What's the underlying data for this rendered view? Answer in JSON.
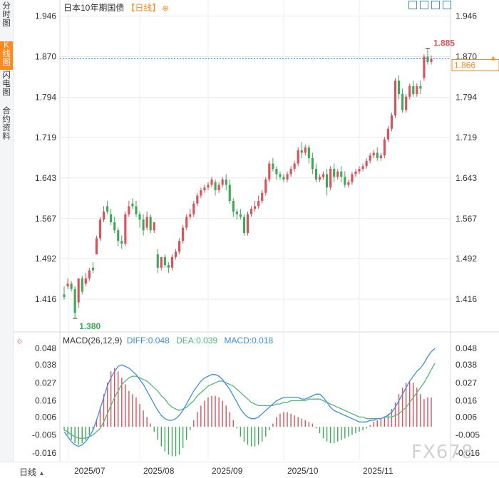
{
  "sidebar": {
    "items": [
      {
        "label": "分时图",
        "active": false
      },
      {
        "label": "K线图",
        "active": true
      },
      {
        "label": "闪电图",
        "active": false
      },
      {
        "label": "合约资料",
        "active": false
      }
    ]
  },
  "header": {
    "title": "日本10年期国债",
    "period_tag": "【日线】",
    "tag_icon": "plus-circle-icon",
    "tools": [
      "fit-icon",
      "expand-icon",
      "chart-mode-icon",
      "close-icon"
    ]
  },
  "macd_legend": {
    "name": "MACD(26,12,9)",
    "diff": "DIFF:0.048",
    "dea": "DEA:0.039",
    "macd": "MACD:0.018"
  },
  "bottom": {
    "period_button": "日线",
    "period_arrow": "▲"
  },
  "watermark": "FX678",
  "colors": {
    "up": "#e0505a",
    "down": "#3eaa58",
    "diff": "#3b8ee8",
    "dea": "#52b878",
    "accent": "#ff8a1f",
    "grid": "#e8e8e8",
    "last_price_line": "#2196f3"
  },
  "chart_data": [
    {
      "type": "candlestick",
      "title": "日本10年期国债",
      "y_ticks": [
        "1.946",
        "1.870",
        "1.794",
        "1.719",
        "1.643",
        "1.567",
        "1.492",
        "1.416"
      ],
      "ylim": [
        1.36,
        1.96
      ],
      "x_ticks": [
        "2025/07",
        "2025/08",
        "2025/09",
        "2025/10",
        "2025/11"
      ],
      "annotations": {
        "high": "1.885",
        "low": "1.380"
      },
      "last_price": "1.866",
      "right_axis_current": "1.870",
      "candles": [
        [
          1.425,
          1.44,
          1.42,
          1.415
        ],
        [
          1.44,
          1.455,
          1.445,
          1.435
        ],
        [
          1.445,
          1.45,
          1.435,
          1.43
        ],
        [
          1.435,
          1.44,
          1.39,
          1.38
        ],
        [
          1.41,
          1.43,
          1.455,
          1.4
        ],
        [
          1.455,
          1.46,
          1.43,
          1.425
        ],
        [
          1.445,
          1.465,
          1.455,
          1.44
        ],
        [
          1.455,
          1.475,
          1.47,
          1.45
        ],
        [
          1.475,
          1.485,
          1.47,
          1.465
        ],
        [
          1.5,
          1.535,
          1.53,
          1.5
        ],
        [
          1.53,
          1.57,
          1.565,
          1.525
        ],
        [
          1.565,
          1.59,
          1.58,
          1.56
        ],
        [
          1.59,
          1.6,
          1.58,
          1.575
        ],
        [
          1.575,
          1.585,
          1.56,
          1.555
        ],
        [
          1.56,
          1.57,
          1.545,
          1.54
        ],
        [
          1.545,
          1.55,
          1.525,
          1.515
        ],
        [
          1.525,
          1.535,
          1.52,
          1.51
        ],
        [
          1.52,
          1.58,
          1.575,
          1.515
        ],
        [
          1.575,
          1.6,
          1.59,
          1.57
        ],
        [
          1.595,
          1.605,
          1.59,
          1.585
        ],
        [
          1.59,
          1.6,
          1.575,
          1.57
        ],
        [
          1.575,
          1.58,
          1.565,
          1.55
        ],
        [
          1.565,
          1.575,
          1.545,
          1.535
        ],
        [
          1.55,
          1.58,
          1.57,
          1.545
        ],
        [
          1.57,
          1.575,
          1.545,
          1.54
        ],
        [
          1.545,
          1.55,
          1.56,
          1.54
        ],
        [
          1.5,
          1.51,
          1.475,
          1.465
        ],
        [
          1.475,
          1.48,
          1.495,
          1.47
        ],
        [
          1.495,
          1.5,
          1.48,
          1.475
        ],
        [
          1.48,
          1.485,
          1.475,
          1.465
        ],
        [
          1.475,
          1.5,
          1.495,
          1.47
        ],
        [
          1.495,
          1.51,
          1.505,
          1.49
        ],
        [
          1.505,
          1.53,
          1.525,
          1.5
        ],
        [
          1.525,
          1.555,
          1.55,
          1.52
        ],
        [
          1.55,
          1.575,
          1.57,
          1.545
        ],
        [
          1.57,
          1.585,
          1.575,
          1.565
        ],
        [
          1.575,
          1.6,
          1.595,
          1.57
        ],
        [
          1.595,
          1.615,
          1.61,
          1.59
        ],
        [
          1.61,
          1.625,
          1.62,
          1.605
        ],
        [
          1.62,
          1.63,
          1.625,
          1.615
        ],
        [
          1.625,
          1.635,
          1.63,
          1.62
        ],
        [
          1.63,
          1.645,
          1.64,
          1.625
        ],
        [
          1.635,
          1.64,
          1.62,
          1.61
        ],
        [
          1.62,
          1.635,
          1.63,
          1.615
        ],
        [
          1.63,
          1.645,
          1.64,
          1.625
        ],
        [
          1.64,
          1.65,
          1.63,
          1.62
        ],
        [
          1.63,
          1.64,
          1.6,
          1.595
        ],
        [
          1.6,
          1.605,
          1.58,
          1.57
        ],
        [
          1.58,
          1.585,
          1.575,
          1.565
        ],
        [
          1.575,
          1.585,
          1.57,
          1.565
        ],
        [
          1.57,
          1.575,
          1.54,
          1.535
        ],
        [
          1.54,
          1.58,
          1.575,
          1.535
        ],
        [
          1.575,
          1.59,
          1.585,
          1.57
        ],
        [
          1.585,
          1.6,
          1.59,
          1.58
        ],
        [
          1.59,
          1.61,
          1.6,
          1.585
        ],
        [
          1.6,
          1.62,
          1.615,
          1.595
        ],
        [
          1.615,
          1.645,
          1.64,
          1.61
        ],
        [
          1.64,
          1.675,
          1.67,
          1.635
        ],
        [
          1.67,
          1.68,
          1.66,
          1.655
        ],
        [
          1.66,
          1.665,
          1.65,
          1.64
        ],
        [
          1.65,
          1.655,
          1.645,
          1.64
        ],
        [
          1.645,
          1.65,
          1.64,
          1.635
        ],
        [
          1.64,
          1.655,
          1.65,
          1.635
        ],
        [
          1.65,
          1.665,
          1.66,
          1.645
        ],
        [
          1.66,
          1.675,
          1.67,
          1.655
        ],
        [
          1.67,
          1.7,
          1.695,
          1.665
        ],
        [
          1.695,
          1.71,
          1.69,
          1.68
        ],
        [
          1.69,
          1.705,
          1.7,
          1.685
        ],
        [
          1.7,
          1.705,
          1.68,
          1.67
        ],
        [
          1.68,
          1.69,
          1.66,
          1.65
        ],
        [
          1.66,
          1.67,
          1.64,
          1.635
        ],
        [
          1.64,
          1.65,
          1.645,
          1.635
        ],
        [
          1.645,
          1.655,
          1.65,
          1.64
        ],
        [
          1.65,
          1.66,
          1.625,
          1.61
        ],
        [
          1.625,
          1.665,
          1.66,
          1.62
        ],
        [
          1.66,
          1.67,
          1.645,
          1.635
        ],
        [
          1.645,
          1.66,
          1.655,
          1.64
        ],
        [
          1.655,
          1.665,
          1.645,
          1.635
        ],
        [
          1.645,
          1.655,
          1.63,
          1.625
        ],
        [
          1.63,
          1.64,
          1.635,
          1.625
        ],
        [
          1.635,
          1.655,
          1.65,
          1.63
        ],
        [
          1.65,
          1.66,
          1.655,
          1.645
        ],
        [
          1.655,
          1.665,
          1.66,
          1.65
        ],
        [
          1.66,
          1.67,
          1.665,
          1.655
        ],
        [
          1.665,
          1.68,
          1.675,
          1.66
        ],
        [
          1.675,
          1.69,
          1.685,
          1.67
        ],
        [
          1.685,
          1.695,
          1.69,
          1.68
        ],
        [
          1.69,
          1.7,
          1.68,
          1.675
        ],
        [
          1.68,
          1.69,
          1.685,
          1.675
        ],
        [
          1.685,
          1.72,
          1.715,
          1.68
        ],
        [
          1.715,
          1.74,
          1.735,
          1.71
        ],
        [
          1.735,
          1.765,
          1.76,
          1.73
        ],
        [
          1.76,
          1.83,
          1.825,
          1.755
        ],
        [
          1.825,
          1.835,
          1.8,
          1.79
        ],
        [
          1.8,
          1.81,
          1.77,
          1.765
        ],
        [
          1.77,
          1.8,
          1.795,
          1.765
        ],
        [
          1.795,
          1.82,
          1.815,
          1.79
        ],
        [
          1.815,
          1.825,
          1.8,
          1.795
        ],
        [
          1.8,
          1.82,
          1.815,
          1.795
        ],
        [
          1.815,
          1.825,
          1.81,
          1.8
        ],
        [
          1.83,
          1.875,
          1.87,
          1.825
        ],
        [
          1.87,
          1.885,
          1.86,
          1.855
        ],
        [
          1.86,
          1.872,
          1.866,
          1.855
        ]
      ]
    },
    {
      "type": "macd",
      "params": [
        26,
        12,
        9
      ],
      "y_ticks": [
        "0.048",
        "0.038",
        "0.027",
        "0.016",
        "0.006",
        "-0.005",
        "-0.016"
      ],
      "ylim": [
        -0.02,
        0.052
      ],
      "histogram": [
        -0.002,
        -0.005,
        -0.008,
        -0.01,
        -0.011,
        -0.01,
        -0.008,
        -0.005,
        -0.002,
        0.004,
        0.012,
        0.02,
        0.027,
        0.034,
        0.036,
        0.034,
        0.03,
        0.026,
        0.022,
        0.02,
        0.018,
        0.014,
        0.01,
        0.006,
        0.002,
        -0.003,
        -0.008,
        -0.012,
        -0.015,
        -0.017,
        -0.018,
        -0.018,
        -0.017,
        -0.013,
        -0.008,
        -0.002,
        0.004,
        0.009,
        0.013,
        0.016,
        0.018,
        0.019,
        0.019,
        0.018,
        0.016,
        0.013,
        0.009,
        0.004,
        -0.001,
        -0.006,
        -0.009,
        -0.011,
        -0.012,
        -0.012,
        -0.011,
        -0.009,
        -0.006,
        -0.002,
        0.002,
        0.006,
        0.008,
        0.009,
        0.009,
        0.008,
        0.007,
        0.006,
        0.005,
        0.004,
        0.003,
        0.002,
        -0.001,
        -0.004,
        -0.007,
        -0.009,
        -0.01,
        -0.01,
        -0.009,
        -0.008,
        -0.007,
        -0.006,
        -0.005,
        -0.004,
        -0.003,
        -0.002,
        -0.001,
        0.001,
        0.003,
        0.004,
        0.005,
        0.006,
        0.008,
        0.011,
        0.015,
        0.02,
        0.024,
        0.027,
        0.028,
        0.027,
        0.024,
        0.02,
        0.017,
        0.018,
        0.018
      ],
      "diff": [
        -0.003,
        -0.006,
        -0.009,
        -0.011,
        -0.012,
        -0.011,
        -0.009,
        -0.006,
        -0.002,
        0.004,
        0.011,
        0.018,
        0.025,
        0.03,
        0.034,
        0.037,
        0.038,
        0.037,
        0.036,
        0.034,
        0.032,
        0.029,
        0.026,
        0.022,
        0.018,
        0.014,
        0.01,
        0.007,
        0.005,
        0.004,
        0.004,
        0.005,
        0.007,
        0.01,
        0.014,
        0.018,
        0.022,
        0.025,
        0.028,
        0.03,
        0.031,
        0.032,
        0.032,
        0.031,
        0.029,
        0.026,
        0.023,
        0.019,
        0.015,
        0.011,
        0.008,
        0.006,
        0.005,
        0.005,
        0.006,
        0.008,
        0.01,
        0.012,
        0.014,
        0.016,
        0.017,
        0.018,
        0.018,
        0.018,
        0.018,
        0.018,
        0.017,
        0.017,
        0.018,
        0.019,
        0.02,
        0.02,
        0.018,
        0.015,
        0.012,
        0.01,
        0.009,
        0.008,
        0.007,
        0.006,
        0.005,
        0.004,
        0.003,
        0.003,
        0.003,
        0.004,
        0.004,
        0.005,
        0.005,
        0.006,
        0.007,
        0.009,
        0.012,
        0.016,
        0.02,
        0.024,
        0.028,
        0.031,
        0.034,
        0.036,
        0.039,
        0.043,
        0.046,
        0.048
      ],
      "dea": [
        -0.002,
        -0.003,
        -0.005,
        -0.006,
        -0.007,
        -0.007,
        -0.007,
        -0.006,
        -0.005,
        -0.003,
        -0.001,
        0.003,
        0.008,
        0.013,
        0.018,
        0.022,
        0.026,
        0.028,
        0.03,
        0.031,
        0.031,
        0.03,
        0.029,
        0.028,
        0.026,
        0.024,
        0.022,
        0.019,
        0.017,
        0.014,
        0.012,
        0.011,
        0.01,
        0.011,
        0.012,
        0.014,
        0.016,
        0.019,
        0.021,
        0.023,
        0.025,
        0.026,
        0.027,
        0.028,
        0.028,
        0.027,
        0.026,
        0.025,
        0.023,
        0.021,
        0.019,
        0.017,
        0.015,
        0.014,
        0.013,
        0.013,
        0.013,
        0.013,
        0.013,
        0.014,
        0.014,
        0.015,
        0.015,
        0.016,
        0.016,
        0.016,
        0.016,
        0.016,
        0.017,
        0.017,
        0.017,
        0.017,
        0.016,
        0.015,
        0.014,
        0.013,
        0.012,
        0.011,
        0.01,
        0.009,
        0.008,
        0.007,
        0.006,
        0.006,
        0.005,
        0.005,
        0.005,
        0.005,
        0.005,
        0.006,
        0.006,
        0.006,
        0.007,
        0.008,
        0.01,
        0.012,
        0.015,
        0.018,
        0.021,
        0.024,
        0.027,
        0.031,
        0.035,
        0.039
      ]
    }
  ]
}
